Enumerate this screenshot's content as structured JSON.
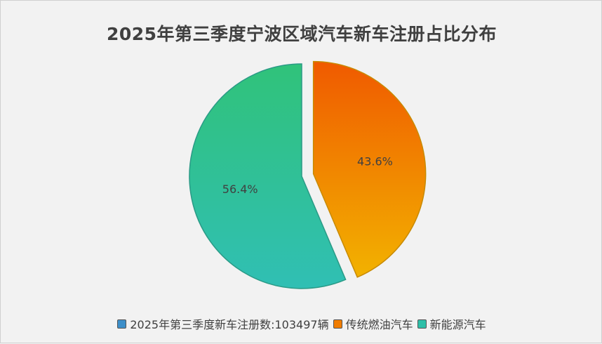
{
  "chart_data": {
    "type": "pie",
    "title": "2025年第三季度宁波区域汽车新车注册占比分布",
    "legend_position": "bottom",
    "legend": [
      {
        "label": "2025年第三季度新车注册数:103497辆",
        "color": "#3d8fc9"
      },
      {
        "label": "传统燃油汽车",
        "color": "#f07c00"
      },
      {
        "label": "新能源汽车",
        "color": "#2fbfa8"
      }
    ],
    "slices": [
      {
        "label": "传统燃油汽车",
        "value": 43.6,
        "data_label": "43.6%",
        "exploded": true,
        "colors": [
          "#f05a00",
          "#f2b200"
        ],
        "border": "#c88a00"
      },
      {
        "label": "新能源汽车",
        "value": 56.4,
        "data_label": "56.4%",
        "exploded": false,
        "colors": [
          "#30c27a",
          "#30bfb4"
        ],
        "border": "#2a9a86"
      }
    ]
  }
}
